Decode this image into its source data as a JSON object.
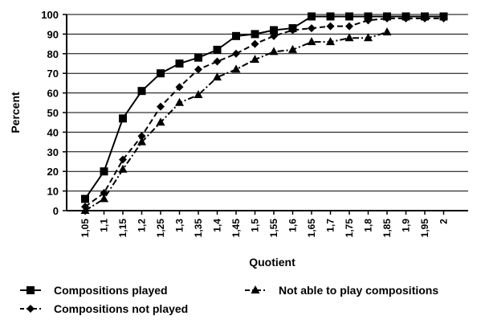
{
  "chart_data": {
    "type": "line",
    "xlabel": "Quotient",
    "ylabel": "Percent",
    "ylim": [
      0,
      100
    ],
    "y_ticks": [
      0,
      10,
      20,
      30,
      40,
      50,
      60,
      70,
      80,
      90,
      100
    ],
    "x": [
      "1,05",
      "1,1",
      "1,15",
      "1,2",
      "1,25",
      "1,3",
      "1,35",
      "1,4",
      "1,45",
      "1,5",
      "1,55",
      "1,6",
      "1,65",
      "1,7",
      "1,75",
      "1,8",
      "1,85",
      "1,9",
      "1,95",
      "2"
    ],
    "grid": "horizontal",
    "legend_position": "bottom",
    "series": [
      {
        "name": "Compositions played",
        "marker": "square",
        "line": "solid",
        "values": [
          6,
          20,
          47,
          61,
          70,
          75,
          78,
          82,
          89,
          90,
          92,
          93,
          99,
          99,
          99,
          99,
          99,
          99,
          99,
          99
        ]
      },
      {
        "name": "Not able to play compositions",
        "marker": "triangle",
        "line": "dash-dot",
        "values": [
          0,
          6,
          21,
          35,
          45,
          55,
          59,
          68,
          72,
          77,
          81,
          82,
          86,
          86,
          88,
          88,
          91,
          null,
          null,
          null
        ]
      },
      {
        "name": "Compositions not played",
        "marker": "diamond",
        "line": "dashed",
        "values": [
          2,
          9,
          26,
          38,
          53,
          63,
          72,
          76,
          80,
          85,
          89,
          92,
          93,
          94,
          94,
          97,
          98,
          98,
          98,
          98
        ]
      }
    ]
  }
}
